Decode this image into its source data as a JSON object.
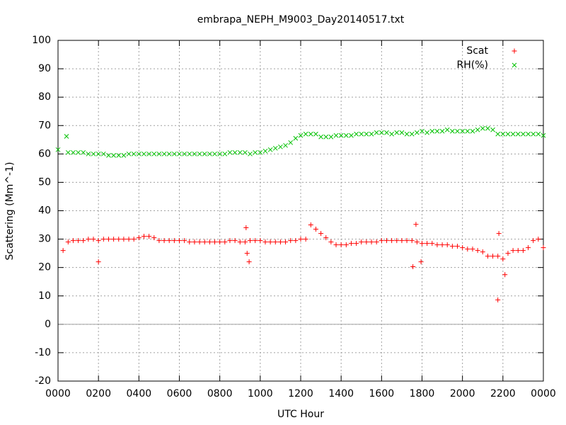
{
  "chart_data": {
    "type": "scatter",
    "title": "embrapa_NEPH_M9003_Day20140517.txt",
    "xlabel": "UTC Hour",
    "ylabel": "Scattering (Mm^-1)",
    "xlim": [
      0,
      24
    ],
    "ylim": [
      -20,
      100
    ],
    "xticks": [
      {
        "value": 0,
        "label": "0000"
      },
      {
        "value": 2,
        "label": "0200"
      },
      {
        "value": 4,
        "label": "0400"
      },
      {
        "value": 6,
        "label": "0600"
      },
      {
        "value": 8,
        "label": "0800"
      },
      {
        "value": 10,
        "label": "1000"
      },
      {
        "value": 12,
        "label": "1200"
      },
      {
        "value": 14,
        "label": "1400"
      },
      {
        "value": 16,
        "label": "1600"
      },
      {
        "value": 18,
        "label": "1800"
      },
      {
        "value": 20,
        "label": "2000"
      },
      {
        "value": 22,
        "label": "2200"
      },
      {
        "value": 24,
        "label": "0000"
      }
    ],
    "yticks": [
      -20,
      -10,
      0,
      10,
      20,
      30,
      40,
      50,
      60,
      70,
      80,
      90,
      100
    ],
    "grid": true,
    "zeroaxis": true,
    "legend": "upper right",
    "series": [
      {
        "name": "Scat",
        "color": "#ff0000",
        "marker": "plus",
        "x": [
          0.25,
          0.5,
          0.75,
          1,
          1.25,
          1.5,
          1.75,
          2,
          2.25,
          2.5,
          2.75,
          3,
          3.25,
          3.5,
          3.75,
          4,
          4.25,
          4.5,
          4.75,
          5,
          5.25,
          5.5,
          5.75,
          6,
          6.25,
          6.5,
          6.75,
          7,
          7.25,
          7.5,
          7.75,
          8,
          8.25,
          8.5,
          8.75,
          9,
          9.25,
          9.5,
          9.75,
          10,
          10.25,
          10.5,
          10.75,
          11,
          11.25,
          11.5,
          11.75,
          12,
          12.25,
          12.5,
          12.75,
          13,
          13.25,
          13.5,
          13.75,
          14,
          14.25,
          14.5,
          14.75,
          15,
          15.25,
          15.5,
          15.75,
          16,
          16.25,
          16.5,
          16.75,
          17,
          17.25,
          17.5,
          17.75,
          18,
          18.25,
          18.5,
          18.75,
          19,
          19.25,
          19.5,
          19.75,
          20,
          20.25,
          20.5,
          20.75,
          21,
          21.25,
          21.5,
          21.75,
          22,
          22.25,
          22.5,
          22.75,
          23,
          23.25,
          23.5,
          23.75,
          24,
          2.0,
          9.3,
          9.35,
          9.45,
          17.55,
          17.7,
          17.95,
          21.75,
          21.8,
          22.1
        ],
        "values": [
          26,
          29,
          29.5,
          29.5,
          29.5,
          30,
          30,
          29.5,
          30,
          30,
          30,
          30,
          30,
          30,
          30,
          30.5,
          31,
          31,
          30.5,
          29.5,
          29.5,
          29.5,
          29.5,
          29.5,
          29.5,
          29,
          29,
          29,
          29,
          29,
          29,
          29,
          29,
          29.5,
          29.5,
          29,
          29,
          29.5,
          29.5,
          29.5,
          29,
          29,
          29,
          29,
          29,
          29.5,
          29.5,
          30,
          30,
          35,
          33.5,
          32,
          30.5,
          29,
          28,
          28,
          28,
          28.5,
          28.5,
          29,
          29,
          29,
          29,
          29.5,
          29.5,
          29.5,
          29.5,
          29.5,
          29.5,
          29.5,
          29,
          28.5,
          28.5,
          28.5,
          28,
          28,
          28,
          27.5,
          27.5,
          27,
          26.5,
          26.5,
          26,
          25.5,
          24,
          24,
          24,
          23,
          25,
          26,
          26,
          26,
          27,
          29.5,
          30,
          27,
          22,
          34,
          25,
          22,
          20.3,
          35.2,
          22,
          8.6,
          32,
          17.5
        ]
      },
      {
        "name": "RH(%)",
        "color": "#00c000",
        "marker": "cross",
        "x": [
          0,
          0.42,
          0.5,
          0.75,
          1,
          1.25,
          1.5,
          1.75,
          2,
          2.25,
          2.5,
          2.75,
          3,
          3.25,
          3.5,
          3.75,
          4,
          4.25,
          4.5,
          4.75,
          5,
          5.25,
          5.5,
          5.75,
          6,
          6.25,
          6.5,
          6.75,
          7,
          7.25,
          7.5,
          7.75,
          8,
          8.25,
          8.5,
          8.75,
          9,
          9.25,
          9.5,
          9.75,
          10,
          10.25,
          10.5,
          10.75,
          11,
          11.25,
          11.5,
          11.75,
          12,
          12.25,
          12.5,
          12.75,
          13,
          13.25,
          13.5,
          13.75,
          14,
          14.25,
          14.5,
          14.75,
          15,
          15.25,
          15.5,
          15.75,
          16,
          16.25,
          16.5,
          16.75,
          17,
          17.25,
          17.5,
          17.75,
          18,
          18.25,
          18.5,
          18.75,
          19,
          19.25,
          19.5,
          19.75,
          20,
          20.25,
          20.5,
          20.75,
          21,
          21.25,
          21.5,
          21.75,
          22,
          22.25,
          22.5,
          22.75,
          23,
          23.25,
          23.5,
          23.75,
          24
        ],
        "values": [
          61.5,
          66.2,
          60.5,
          60.5,
          60.5,
          60.5,
          60,
          60,
          60,
          60,
          59.5,
          59.5,
          59.5,
          59.5,
          60,
          60,
          60,
          60,
          60,
          60,
          60,
          60,
          60,
          60,
          60,
          60,
          60,
          60,
          60,
          60,
          60,
          60,
          60,
          60,
          60.5,
          60.5,
          60.5,
          60.5,
          60,
          60.5,
          60.5,
          61,
          61.5,
          62,
          62.5,
          63,
          64,
          65.5,
          66.5,
          67,
          67,
          67,
          66,
          66,
          66,
          66.5,
          66.5,
          66.5,
          66.5,
          67,
          67,
          67,
          67,
          67.5,
          67.5,
          67.5,
          67,
          67.5,
          67.5,
          67,
          67,
          67.5,
          68,
          67.5,
          68,
          68,
          68,
          68.5,
          68,
          68,
          68,
          68,
          68,
          68.5,
          69,
          69,
          68.5,
          67,
          67,
          67,
          67,
          67,
          67,
          67,
          67,
          67,
          66.5
        ]
      }
    ]
  }
}
